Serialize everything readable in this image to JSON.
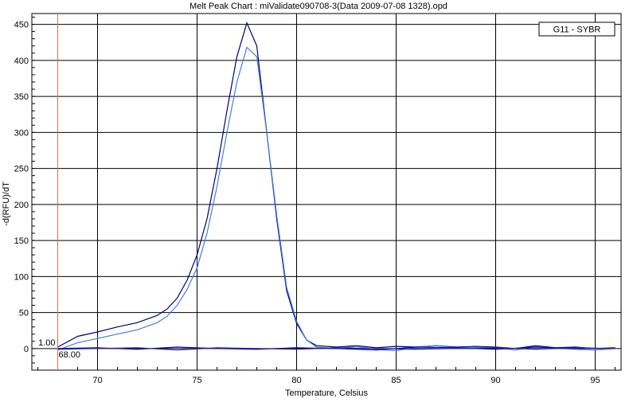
{
  "chart_data": {
    "type": "line",
    "title": "Melt Peak Chart : miValidate090708-3(Data 2009-07-08 1328).opd",
    "xlabel": "Temperature, Celsius",
    "ylabel": "-d(RFU)/dT",
    "xlim": [
      66.7,
      96.3
    ],
    "ylim": [
      -30,
      465
    ],
    "xticks": [
      70,
      75,
      80,
      85,
      90,
      95
    ],
    "yticks": [
      0,
      50,
      100,
      150,
      200,
      250,
      300,
      350,
      400,
      450
    ],
    "grid": true,
    "legend": {
      "entries": [
        "G11 - SYBR"
      ],
      "placement": "top-right"
    },
    "marker_line": {
      "x": 68.0,
      "x_label": "68.00",
      "y_label": "1.00",
      "color": "#e07040"
    },
    "series": [
      {
        "color": "#00007a",
        "x": [
          68.0,
          69.0,
          70.0,
          71.0,
          72.0,
          73.0,
          73.5,
          74.0,
          74.5,
          75.0,
          75.5,
          76.0,
          76.5,
          77.0,
          77.5,
          78.0,
          78.5,
          79.0,
          79.5,
          80.0,
          80.5,
          81.0,
          82.0,
          83.0,
          84.0,
          85.0,
          86.0,
          87.0,
          88.0,
          89.0,
          90.0,
          91.0,
          92.0,
          93.0,
          94.0,
          95.0,
          96.0
        ],
        "y": [
          2,
          17,
          23,
          30,
          36,
          46,
          55,
          70,
          95,
          130,
          180,
          250,
          330,
          405,
          452,
          420,
          300,
          180,
          80,
          35,
          12,
          4,
          2,
          4,
          1,
          3,
          2,
          4,
          2,
          3,
          2,
          0,
          4,
          1,
          2,
          0,
          1
        ]
      },
      {
        "color": "#3f7fdf",
        "x": [
          68.0,
          69.0,
          70.0,
          71.0,
          72.0,
          73.0,
          73.5,
          74.0,
          74.5,
          75.0,
          75.5,
          76.0,
          76.5,
          77.0,
          77.5,
          78.0,
          78.5,
          79.0,
          79.5,
          80.0,
          80.5,
          81.0,
          82.0,
          83.0,
          84.0,
          85.0,
          86.0,
          87.0,
          88.0,
          89.0,
          90.0,
          91.0,
          92.0,
          93.0,
          94.0,
          95.0,
          96.0
        ],
        "y": [
          -2,
          8,
          14,
          20,
          26,
          36,
          45,
          60,
          82,
          112,
          160,
          225,
          300,
          370,
          418,
          405,
          300,
          185,
          85,
          38,
          12,
          2,
          0,
          3,
          -1,
          -3,
          2,
          4,
          1,
          2,
          1,
          -2,
          3,
          0,
          -1,
          -2,
          0
        ]
      },
      {
        "color": "#0000cc",
        "x": [
          68,
          70,
          72,
          74,
          76,
          78,
          80,
          82,
          84,
          86,
          88,
          90,
          92,
          94,
          96
        ],
        "y": [
          0,
          1,
          -1,
          2,
          0,
          -1,
          1,
          0,
          -2,
          2,
          1,
          -1,
          2,
          0,
          0
        ]
      },
      {
        "color": "#2a2a9a",
        "x": [
          68,
          70,
          72,
          74,
          76,
          78,
          80,
          82,
          84,
          86,
          88,
          90,
          92,
          94,
          96
        ],
        "y": [
          -1,
          0,
          1,
          -2,
          1,
          0,
          -1,
          1,
          0,
          -1,
          0,
          1,
          -1,
          1,
          0
        ]
      }
    ]
  }
}
